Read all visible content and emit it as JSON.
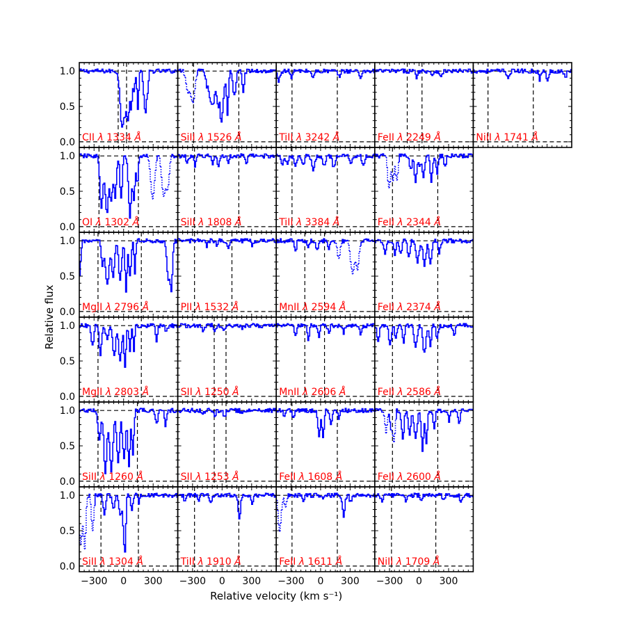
{
  "chart_data": {
    "type": "line",
    "xlabel": "Relative velocity (km s⁻¹)",
    "ylabel": "Relative flux",
    "xlim": [
      -450,
      550
    ],
    "ylim": [
      -0.08,
      1.12
    ],
    "xticks": [
      -300,
      0,
      300
    ],
    "xtick_labels": [
      "−300",
      "0",
      "300"
    ],
    "yticks": [
      0.0,
      0.5,
      1.0
    ],
    "ytick_labels": [
      "0.0",
      "0.5",
      "1.0"
    ],
    "colors": {
      "spectrum": "#0000ff",
      "label": "#ff0000",
      "reference": "#000000"
    },
    "panels": [
      {
        "row": 0,
        "col": 0,
        "ion": "CII",
        "lambda": "1334",
        "vmarks": [
          -55,
          30
        ],
        "abs": [
          [
            -20,
            20,
            0.78
          ],
          [
            10,
            12,
            0.45
          ],
          [
            40,
            15,
            0.7
          ],
          [
            72,
            10,
            0.5
          ],
          [
            100,
            10,
            0.3
          ],
          [
            140,
            8,
            0.55
          ],
          [
            215,
            14,
            0.6
          ],
          [
            240,
            8,
            0.25
          ]
        ],
        "blend": []
      },
      {
        "row": 0,
        "col": 1,
        "ion": "SiII",
        "lambda": "1526",
        "vmarks": [
          -290,
          170
        ],
        "abs": [
          [
            -160,
            10,
            0.15
          ],
          [
            -105,
            30,
            0.5
          ],
          [
            -45,
            12,
            0.45
          ],
          [
            -5,
            18,
            0.55
          ],
          [
            -15,
            8,
            0.5
          ],
          [
            50,
            10,
            0.6
          ],
          [
            120,
            15,
            0.35
          ],
          [
            210,
            10,
            0.3
          ]
        ],
        "blend": [
          [
            -350,
            20,
            0.3
          ],
          [
            -300,
            20,
            0.45
          ]
        ]
      },
      {
        "row": 0,
        "col": 2,
        "ion": "TiII",
        "lambda": "3242",
        "vmarks": [
          -290,
          170
        ],
        "abs": [
          [
            -430,
            12,
            0.15
          ],
          [
            -300,
            12,
            0.08
          ],
          [
            -80,
            12,
            0.1
          ],
          [
            180,
            14,
            0.08
          ],
          [
            400,
            10,
            0.1
          ]
        ],
        "blend": []
      },
      {
        "row": 0,
        "col": 3,
        "ion": "FeII",
        "lambda": "2249",
        "vmarks": [
          -120,
          30
        ],
        "abs": [
          [
            -30,
            10,
            0.08
          ],
          [
            130,
            10,
            0.06
          ],
          [
            220,
            10,
            0.1
          ]
        ],
        "blend": []
      },
      {
        "row": 0,
        "col": 4,
        "ion": "NiII",
        "lambda": "1741",
        "vmarks": [
          -300,
          160
        ],
        "abs": [
          [
            -100,
            12,
            0.1
          ],
          [
            220,
            10,
            0.12
          ],
          [
            300,
            12,
            0.15
          ],
          [
            480,
            10,
            0.1
          ]
        ],
        "blend": []
      },
      {
        "row": 1,
        "col": 0,
        "ion": "OI",
        "lambda": "1302",
        "vmarks": [
          -250,
          150
        ],
        "abs": [
          [
            -230,
            15,
            0.75
          ],
          [
            -175,
            18,
            0.8
          ],
          [
            -130,
            15,
            0.65
          ],
          [
            -90,
            12,
            0.6
          ],
          [
            -30,
            12,
            0.6
          ],
          [
            60,
            15,
            0.85
          ],
          [
            100,
            12,
            0.6
          ],
          [
            135,
            10,
            0.4
          ]
        ],
        "blend": [
          [
            290,
            20,
            0.6
          ],
          [
            400,
            18,
            0.55
          ],
          [
            440,
            18,
            0.45
          ]
        ]
      },
      {
        "row": 1,
        "col": 1,
        "ion": "SiII",
        "lambda": "1808",
        "vmarks": [
          -280,
          170
        ],
        "abs": [
          [
            -360,
            10,
            0.1
          ],
          [
            -280,
            10,
            0.15
          ],
          [
            -100,
            10,
            0.12
          ],
          [
            -40,
            10,
            0.15
          ],
          [
            60,
            10,
            0.1
          ],
          [
            240,
            12,
            0.1
          ]
        ],
        "blend": []
      },
      {
        "row": 1,
        "col": 2,
        "ion": "TiII",
        "lambda": "3384",
        "vmarks": [
          -290,
          170
        ],
        "abs": [
          [
            -390,
            15,
            0.1
          ],
          [
            -340,
            12,
            0.12
          ],
          [
            -260,
            15,
            0.15
          ],
          [
            -180,
            12,
            0.12
          ],
          [
            -80,
            15,
            0.2
          ],
          [
            30,
            15,
            0.12
          ],
          [
            130,
            14,
            0.18
          ],
          [
            300,
            12,
            0.1
          ],
          [
            430,
            12,
            0.15
          ]
        ],
        "blend": []
      },
      {
        "row": 1,
        "col": 3,
        "ion": "FeII",
        "lambda": "2344",
        "vmarks": [
          -270,
          190
        ],
        "abs": [
          [
            -90,
            12,
            0.2
          ],
          [
            -40,
            12,
            0.35
          ],
          [
            0,
            10,
            0.15
          ],
          [
            40,
            12,
            0.3
          ],
          [
            120,
            12,
            0.35
          ],
          [
            180,
            10,
            0.25
          ],
          [
            260,
            10,
            0.15
          ]
        ],
        "blend": [
          [
            -310,
            14,
            0.45
          ],
          [
            -270,
            12,
            0.35
          ],
          [
            -230,
            12,
            0.35
          ]
        ]
      },
      {
        "row": 2,
        "col": 0,
        "ion": "MgII",
        "lambda": "2796",
        "vmarks": [
          -260,
          180
        ],
        "abs": [
          [
            -460,
            15,
            0.65
          ],
          [
            -220,
            12,
            0.35
          ],
          [
            -170,
            20,
            0.6
          ],
          [
            -110,
            15,
            0.5
          ],
          [
            -40,
            15,
            0.55
          ],
          [
            20,
            10,
            0.7
          ],
          [
            60,
            12,
            0.5
          ],
          [
            110,
            8,
            0.45
          ],
          [
            450,
            15,
            0.55
          ],
          [
            480,
            12,
            0.7
          ]
        ],
        "blend": []
      },
      {
        "row": 2,
        "col": 1,
        "ion": "PII",
        "lambda": "1532",
        "vmarks": [
          -280,
          100
        ],
        "abs": [
          [
            -160,
            10,
            0.08
          ],
          [
            -60,
            10,
            0.06
          ],
          [
            60,
            10,
            0.08
          ],
          [
            300,
            10,
            0.06
          ]
        ],
        "blend": []
      },
      {
        "row": 2,
        "col": 2,
        "ion": "MnII",
        "lambda": "2594",
        "vmarks": [
          -160,
          40
        ],
        "abs": [
          [
            -260,
            10,
            0.15
          ],
          [
            -130,
            12,
            0.1
          ],
          [
            -40,
            10,
            0.15
          ],
          [
            80,
            10,
            0.1
          ]
        ],
        "blend": [
          [
            180,
            15,
            0.25
          ],
          [
            320,
            20,
            0.45
          ],
          [
            370,
            15,
            0.4
          ]
        ]
      },
      {
        "row": 2,
        "col": 3,
        "ion": "FeII",
        "lambda": "2374",
        "vmarks": [
          -270,
          190
        ],
        "abs": [
          [
            -350,
            12,
            0.2
          ],
          [
            -250,
            12,
            0.18
          ],
          [
            -190,
            12,
            0.2
          ],
          [
            -110,
            12,
            0.25
          ],
          [
            -20,
            15,
            0.3
          ],
          [
            50,
            15,
            0.35
          ],
          [
            110,
            14,
            0.3
          ],
          [
            200,
            10,
            0.2
          ]
        ],
        "blend": []
      },
      {
        "row": 3,
        "col": 0,
        "ion": "MgII",
        "lambda": "2803",
        "vmarks": [
          -260,
          180
        ],
        "abs": [
          [
            -320,
            12,
            0.3
          ],
          [
            -240,
            12,
            0.4
          ],
          [
            -170,
            15,
            0.2
          ],
          [
            -100,
            14,
            0.45
          ],
          [
            -40,
            15,
            0.5
          ],
          [
            10,
            10,
            0.6
          ],
          [
            60,
            10,
            0.35
          ],
          [
            100,
            8,
            0.35
          ],
          [
            330,
            10,
            0.25
          ],
          [
            430,
            10,
            0.1
          ]
        ],
        "blend": []
      },
      {
        "row": 3,
        "col": 1,
        "ion": "SII",
        "lambda": "1250",
        "vmarks": [
          -80,
          40
        ],
        "abs": [
          [
            -200,
            12,
            0.06
          ],
          [
            -80,
            10,
            0.08
          ],
          [
            20,
            10,
            0.08
          ],
          [
            200,
            10,
            0.05
          ]
        ],
        "blend": []
      },
      {
        "row": 3,
        "col": 2,
        "ion": "MnII",
        "lambda": "2606",
        "vmarks": [
          -160,
          40
        ],
        "abs": [
          [
            -260,
            10,
            0.15
          ],
          [
            -130,
            10,
            0.2
          ],
          [
            -20,
            10,
            0.15
          ],
          [
            80,
            10,
            0.1
          ],
          [
            230,
            10,
            0.1
          ],
          [
            400,
            10,
            0.12
          ]
        ],
        "blend": []
      },
      {
        "row": 3,
        "col": 3,
        "ion": "FeII",
        "lambda": "2586",
        "vmarks": [
          -270,
          190
        ],
        "abs": [
          [
            -420,
            12,
            0.2
          ],
          [
            -300,
            12,
            0.3
          ],
          [
            -240,
            10,
            0.2
          ],
          [
            -160,
            10,
            0.25
          ],
          [
            -40,
            15,
            0.3
          ],
          [
            50,
            15,
            0.4
          ],
          [
            110,
            10,
            0.3
          ],
          [
            180,
            10,
            0.2
          ],
          [
            350,
            10,
            0.15
          ]
        ],
        "blend": []
      },
      {
        "row": 4,
        "col": 0,
        "ion": "SiII",
        "lambda": "1260",
        "vmarks": [
          -260,
          140
        ],
        "abs": [
          [
            -250,
            15,
            0.4
          ],
          [
            -190,
            15,
            0.9
          ],
          [
            -130,
            18,
            0.85
          ],
          [
            -60,
            15,
            0.75
          ],
          [
            0,
            15,
            0.7
          ],
          [
            50,
            12,
            0.8
          ],
          [
            90,
            10,
            0.6
          ],
          [
            330,
            12,
            0.2
          ],
          [
            420,
            10,
            0.2
          ]
        ],
        "blend": []
      },
      {
        "row": 4,
        "col": 1,
        "ion": "SII",
        "lambda": "1253",
        "vmarks": [
          -80,
          40
        ],
        "abs": [
          [
            -200,
            10,
            0.05
          ],
          [
            -80,
            10,
            0.08
          ],
          [
            20,
            10,
            0.1
          ],
          [
            200,
            10,
            0.06
          ]
        ],
        "blend": []
      },
      {
        "row": 4,
        "col": 2,
        "ion": "FeII",
        "lambda": "1608",
        "vmarks": [
          -290,
          170
        ],
        "abs": [
          [
            -370,
            10,
            0.1
          ],
          [
            -280,
            10,
            0.1
          ],
          [
            -20,
            12,
            0.35
          ],
          [
            20,
            10,
            0.4
          ],
          [
            100,
            12,
            0.2
          ],
          [
            180,
            10,
            0.1
          ]
        ],
        "blend": []
      },
      {
        "row": 4,
        "col": 3,
        "ion": "FeII",
        "lambda": "2600",
        "vmarks": [
          -270,
          190
        ],
        "abs": [
          [
            -290,
            10,
            0.3
          ],
          [
            -170,
            12,
            0.4
          ],
          [
            -100,
            12,
            0.35
          ],
          [
            -40,
            15,
            0.4
          ],
          [
            30,
            12,
            0.55
          ],
          [
            70,
            10,
            0.45
          ],
          [
            150,
            10,
            0.25
          ],
          [
            300,
            10,
            0.15
          ],
          [
            400,
            10,
            0.2
          ]
        ],
        "blend": [
          [
            -340,
            12,
            0.3
          ],
          [
            -260,
            12,
            0.45
          ]
        ]
      },
      {
        "row": 5,
        "col": 0,
        "ion": "SiII",
        "lambda": "1304",
        "vmarks": [
          -230,
          150
        ],
        "abs": [
          [
            -200,
            12,
            0.25
          ],
          [
            -110,
            12,
            0.2
          ],
          [
            -40,
            12,
            0.3
          ],
          [
            0,
            12,
            0.55
          ],
          [
            10,
            8,
            0.7
          ],
          [
            80,
            10,
            0.2
          ],
          [
            150,
            8,
            0.1
          ]
        ],
        "blend": [
          [
            -440,
            15,
            0.7
          ],
          [
            -400,
            12,
            0.75
          ],
          [
            -320,
            12,
            0.5
          ]
        ]
      },
      {
        "row": 5,
        "col": 1,
        "ion": "TiII",
        "lambda": "1910",
        "vmarks": [
          -280,
          170
        ],
        "abs": [
          [
            -380,
            10,
            0.1
          ],
          [
            -240,
            10,
            0.08
          ],
          [
            -120,
            10,
            0.12
          ],
          [
            170,
            12,
            0.35
          ],
          [
            300,
            10,
            0.1
          ]
        ],
        "blend": []
      },
      {
        "row": 5,
        "col": 2,
        "ion": "FeII",
        "lambda": "1611",
        "vmarks": [
          -290,
          170
        ],
        "abs": [
          [
            -180,
            10,
            0.06
          ],
          [
            20,
            10,
            0.06
          ],
          [
            230,
            12,
            0.3
          ],
          [
            300,
            10,
            0.1
          ]
        ],
        "blend": [
          [
            -420,
            15,
            0.5
          ],
          [
            -360,
            12,
            0.15
          ]
        ]
      },
      {
        "row": 5,
        "col": 3,
        "ion": "NiII",
        "lambda": "1709",
        "vmarks": [
          -280,
          170
        ],
        "abs": [
          [
            -380,
            10,
            0.1
          ],
          [
            -140,
            10,
            0.08
          ],
          [
            20,
            10,
            0.08
          ],
          [
            240,
            10,
            0.06
          ],
          [
            420,
            10,
            0.08
          ]
        ],
        "blend": []
      }
    ]
  }
}
